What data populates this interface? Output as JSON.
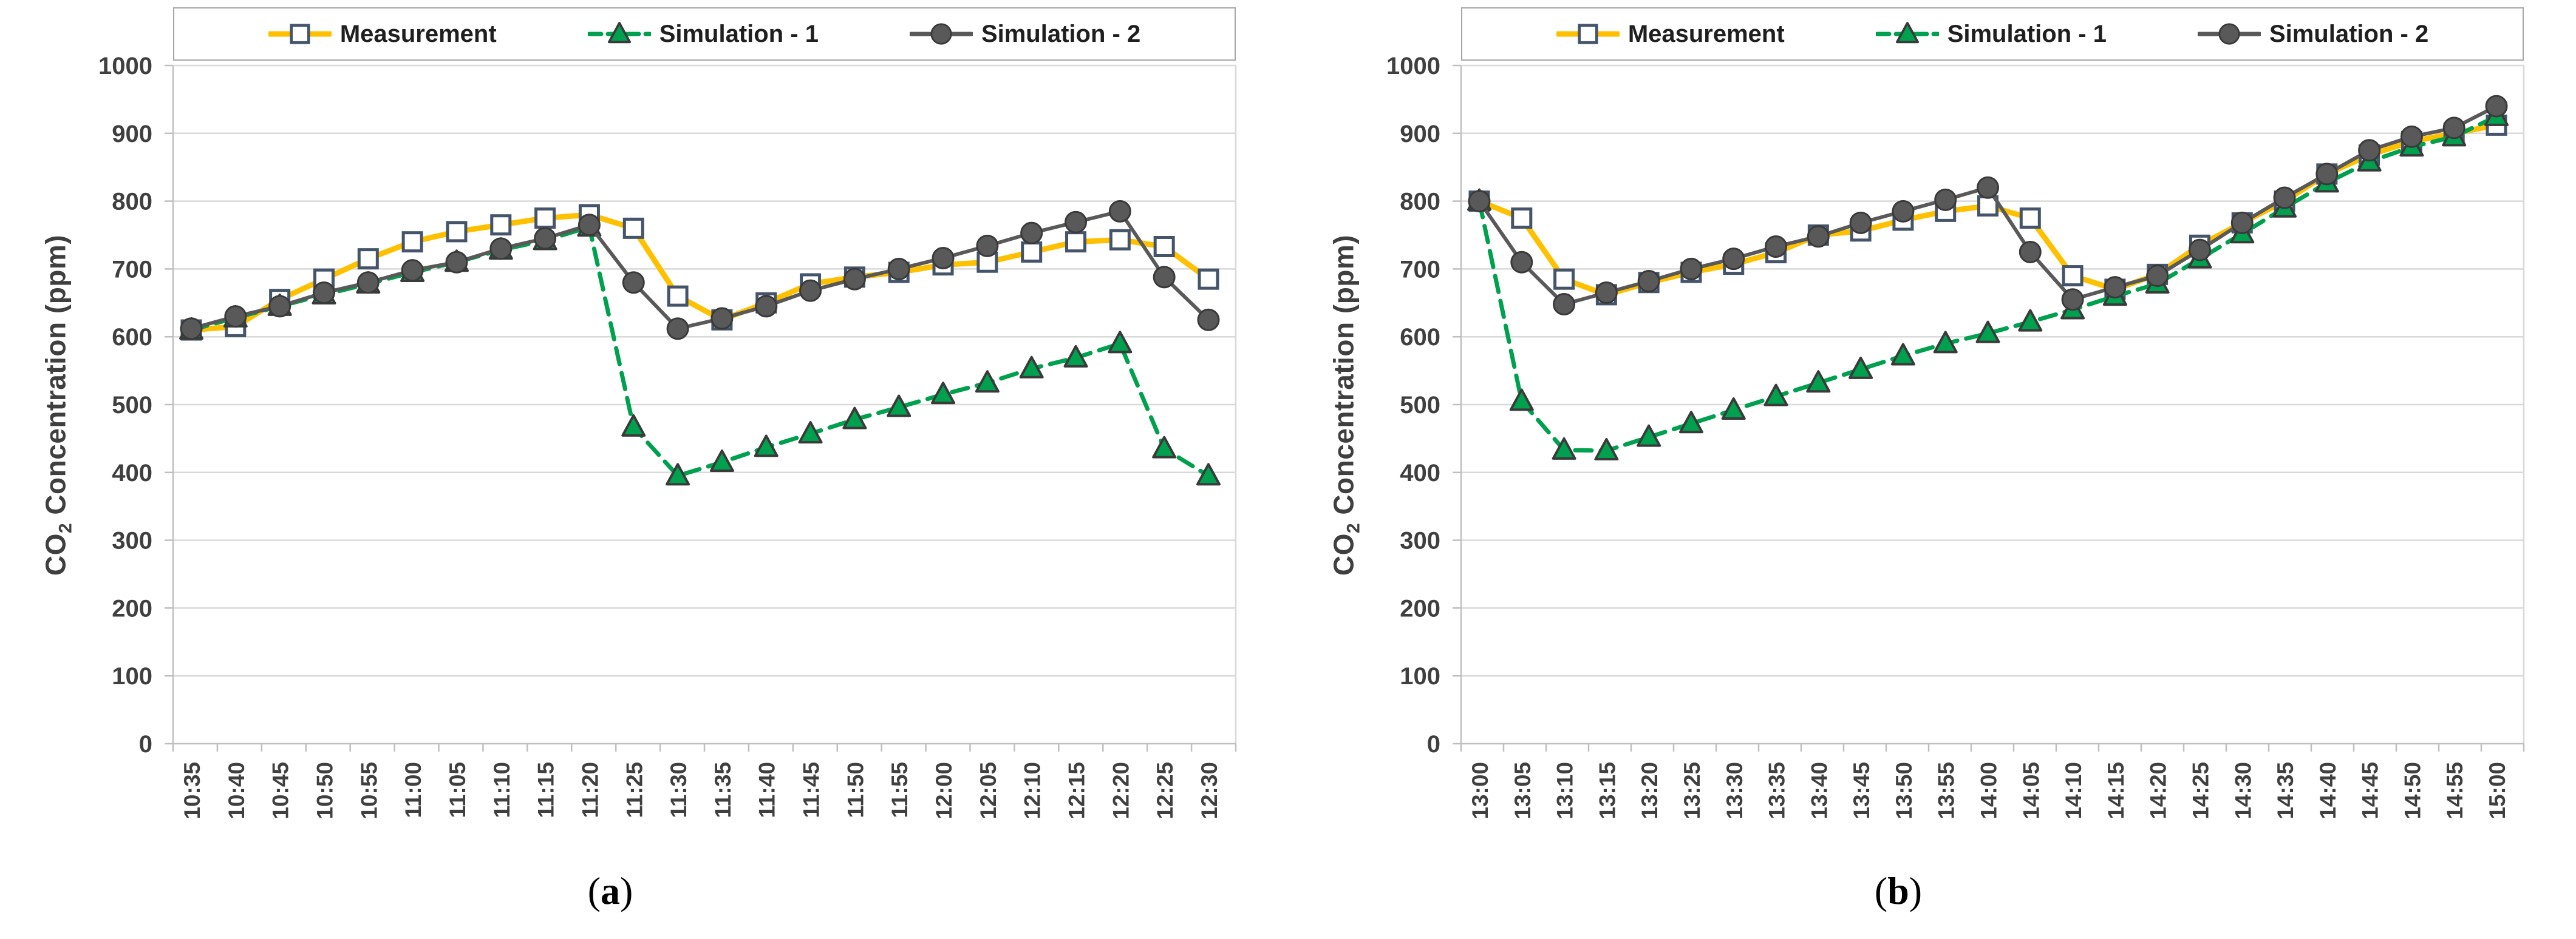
{
  "figure": {
    "y_axis_title": {
      "prefix": "CO",
      "sub": "2",
      "suffix": " Concentration (ppm)"
    },
    "colors": {
      "measurement": "#FFC000",
      "simulation1": "#00A14E",
      "simulation2": "#595959",
      "marker_square_fill": "#FFFFFF",
      "marker_square_stroke": "#44546A",
      "marker_edge": "#3A3A3A",
      "gridline": "#D9D9D9",
      "axis_line": "#BFBFBF",
      "tick_text": "#3F3F3F",
      "legend_text": "#1F1F1F",
      "legend_border": "#A6A6A6"
    }
  },
  "chart_data": [
    {
      "type": "line",
      "caption": {
        "open": "(",
        "letter": "a",
        "close": ")"
      },
      "title": "",
      "xlabel": "",
      "ylabel": "CO2 Concentration (ppm)",
      "ylim": [
        0,
        1000
      ],
      "ytick_step": 100,
      "grid": "horizontal",
      "legend_position": "top",
      "categories": [
        "10:35",
        "10:40",
        "10:45",
        "10:50",
        "10:55",
        "11:00",
        "11:05",
        "11:10",
        "11:15",
        "11:20",
        "11:25",
        "11:30",
        "11:35",
        "11:40",
        "11:45",
        "11:50",
        "11:55",
        "12:00",
        "12:05",
        "12:10",
        "12:15",
        "12:20",
        "12:25",
        "12:30"
      ],
      "series": [
        {
          "name": "Measurement",
          "marker": "square",
          "line": "solid",
          "color": "#FFC000",
          "values": [
            610,
            615,
            655,
            685,
            715,
            740,
            755,
            765,
            775,
            780,
            760,
            660,
            625,
            650,
            678,
            688,
            695,
            706,
            710,
            725,
            740,
            743,
            733,
            685
          ]
        },
        {
          "name": "Simulation - 1",
          "marker": "triangle",
          "line": "dashed",
          "color": "#00A14E",
          "values": [
            610,
            628,
            645,
            662,
            678,
            695,
            710,
            728,
            742,
            762,
            467,
            395,
            415,
            437,
            457,
            478,
            496,
            515,
            532,
            553,
            569,
            590,
            435,
            395
          ]
        },
        {
          "name": "Simulation - 2",
          "marker": "circle",
          "line": "solid",
          "color": "#595959",
          "values": [
            612,
            630,
            645,
            665,
            680,
            698,
            710,
            730,
            745,
            765,
            680,
            612,
            627,
            645,
            668,
            685,
            700,
            716,
            734,
            753,
            769,
            785,
            688,
            625
          ]
        }
      ]
    },
    {
      "type": "line",
      "caption": {
        "open": "(",
        "letter": "b",
        "close": ")"
      },
      "title": "",
      "xlabel": "",
      "ylabel": "CO2 Concentration (ppm)",
      "ylim": [
        0,
        1000
      ],
      "ytick_step": 100,
      "grid": "horizontal",
      "legend_position": "top",
      "categories": [
        "13:00",
        "13:05",
        "13:10",
        "13:15",
        "13:20",
        "13:25",
        "13:30",
        "13:35",
        "13:40",
        "13:45",
        "13:50",
        "13:55",
        "14:00",
        "14:05",
        "14:10",
        "14:15",
        "14:20",
        "14:25",
        "14:30",
        "14:35",
        "14:40",
        "14:45",
        "14:50",
        "14:55",
        "15:00"
      ],
      "series": [
        {
          "name": "Measurement",
          "marker": "square",
          "line": "solid",
          "color": "#FFC000",
          "values": [
            800,
            775,
            685,
            662,
            680,
            695,
            707,
            724,
            750,
            756,
            772,
            785,
            793,
            775,
            690,
            670,
            692,
            735,
            768,
            800,
            840,
            868,
            888,
            900,
            912
          ]
        },
        {
          "name": "Simulation - 1",
          "marker": "triangle",
          "line": "dashed",
          "color": "#00A14E",
          "values": [
            800,
            505,
            433,
            432,
            452,
            472,
            492,
            512,
            532,
            552,
            572,
            590,
            605,
            622,
            640,
            660,
            678,
            715,
            752,
            790,
            827,
            858,
            880,
            895,
            925
          ]
        },
        {
          "name": "Simulation - 2",
          "marker": "circle",
          "line": "solid",
          "color": "#595959",
          "values": [
            800,
            710,
            648,
            665,
            682,
            700,
            715,
            733,
            748,
            768,
            785,
            802,
            820,
            725,
            655,
            673,
            690,
            728,
            768,
            805,
            840,
            875,
            895,
            908,
            940
          ]
        }
      ]
    }
  ]
}
